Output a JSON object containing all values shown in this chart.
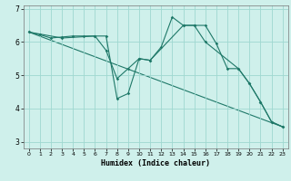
{
  "xlabel": "Humidex (Indice chaleur)",
  "bg_color": "#cff0eb",
  "grid_color": "#9fd8d0",
  "line_color": "#1e7868",
  "xlim": [
    -0.5,
    23.5
  ],
  "ylim": [
    2.8,
    7.1
  ],
  "yticks": [
    3,
    4,
    5,
    6,
    7
  ],
  "xticks": [
    0,
    1,
    2,
    3,
    4,
    5,
    6,
    7,
    8,
    9,
    10,
    11,
    12,
    13,
    14,
    15,
    16,
    17,
    18,
    19,
    20,
    21,
    22,
    23
  ],
  "series1_x": [
    0,
    1,
    2,
    3,
    4,
    5,
    6,
    7,
    8,
    9,
    10,
    11,
    12,
    13,
    14,
    15,
    16,
    17,
    18,
    19,
    20,
    21,
    22,
    23
  ],
  "series1_y": [
    6.3,
    6.22,
    6.12,
    6.15,
    6.18,
    6.18,
    6.18,
    6.18,
    4.3,
    4.45,
    5.5,
    5.45,
    5.85,
    6.75,
    6.5,
    6.5,
    6.5,
    5.95,
    5.2,
    5.2,
    4.75,
    4.2,
    3.6,
    3.45
  ],
  "series2_x": [
    0,
    3,
    6,
    7,
    8,
    9,
    10,
    11,
    14,
    15,
    16,
    19,
    20,
    21,
    22,
    23
  ],
  "series2_y": [
    6.3,
    6.12,
    6.18,
    5.75,
    4.9,
    5.2,
    5.5,
    5.45,
    6.5,
    6.5,
    6.0,
    5.2,
    4.75,
    4.2,
    3.6,
    3.45
  ],
  "series3_x": [
    0,
    23
  ],
  "series3_y": [
    6.3,
    3.45
  ]
}
